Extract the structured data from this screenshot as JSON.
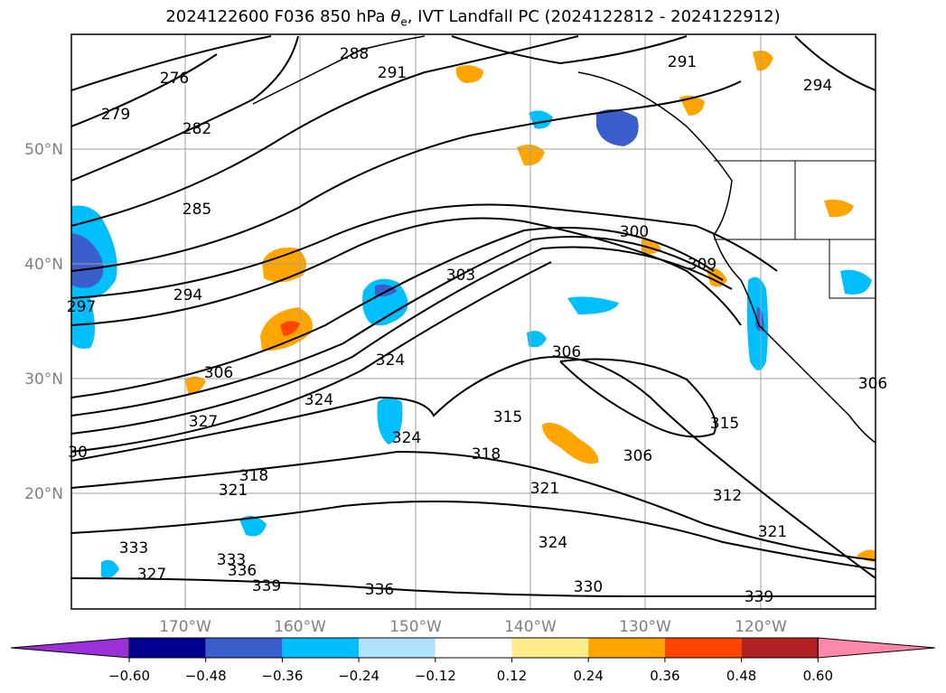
{
  "title": {
    "prefix": "2024122600 F036 850 hPa ",
    "theta": "θ",
    "theta_sub": "e",
    "suffix": ", IVT Landfall PC (2024122812 - 2024122912)"
  },
  "axes": {
    "lat_labels": [
      "50°N",
      "40°N",
      "30°N",
      "20°N"
    ],
    "lon_labels": [
      "170°W",
      "160°W",
      "150°W",
      "140°W",
      "130°W",
      "120°W"
    ]
  },
  "contour_labels": [
    "276",
    "279",
    "282",
    "285",
    "288",
    "291",
    "291",
    "294",
    "294",
    "297",
    "300",
    "303",
    "306",
    "306",
    "306",
    "306",
    "309",
    "312",
    "315",
    "315",
    "318",
    "318",
    "321",
    "321",
    "321",
    "324",
    "324",
    "324",
    "324",
    "327",
    "327",
    "330",
    "333",
    "333",
    "336",
    "336",
    "339",
    "339",
    "30"
  ],
  "colorbar": {
    "colors": [
      "#9b30d9",
      "#000090",
      "#3a5fcd",
      "#00bfff",
      "#b0e2ff",
      "#ffffff",
      "#ffec8b",
      "#ffa500",
      "#ff4500",
      "#b22222",
      "#ff88aa"
    ],
    "tick_labels": [
      "−0.60",
      "−0.48",
      "−0.36",
      "−0.24",
      "−0.12",
      "0.12",
      "0.24",
      "0.36",
      "0.48",
      "0.60"
    ]
  },
  "colors": {
    "gridline": "#a0a0a0",
    "contour": "#000000",
    "tick": "#808080"
  }
}
